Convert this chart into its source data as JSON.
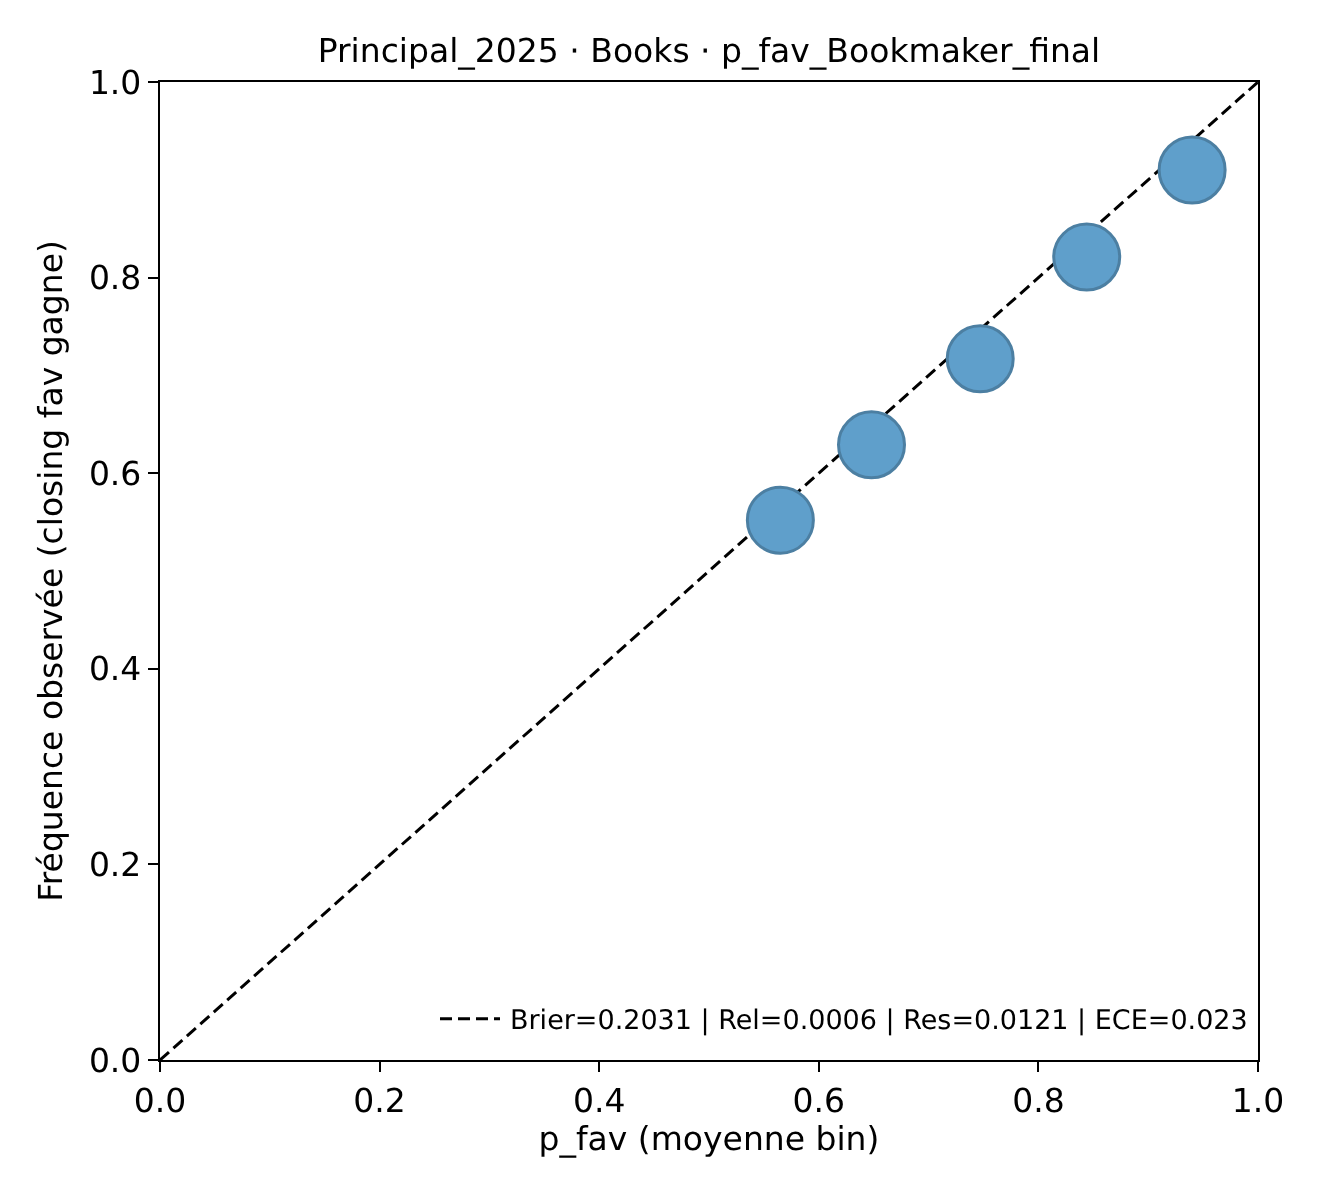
{
  "chart_data": {
    "type": "scatter",
    "title": "Principal_2025 · Books · p_fav_Bookmaker_final",
    "xlabel": "p_fav (moyenne bin)",
    "ylabel": "Fréquence observée (closing fav gagne)",
    "xlim": [
      0,
      1
    ],
    "ylim": [
      0,
      1
    ],
    "xticks": [
      {
        "value": 0,
        "label": "0.0"
      },
      0.2,
      0.4,
      0.6,
      0.8,
      {
        "value": 1,
        "label": "1.0"
      }
    ],
    "yticks": [
      {
        "value": 0,
        "label": "0.0"
      },
      0.2,
      0.4,
      0.6,
      0.8,
      {
        "value": 1,
        "label": "1.0"
      }
    ],
    "legend": "bottom right",
    "series": [
      {
        "type": "line",
        "name": "Brier=0.2031 | Rel=0.0006 | Res=0.0121 | ECE=0.023",
        "color": "#000000",
        "line_style": "dashed",
        "marker": "none",
        "x": [
          0,
          1
        ],
        "values": [
          0,
          1
        ]
      },
      {
        "color": "#5f9fcb",
        "marker": "circle",
        "x": [
          0.565,
          0.648,
          0.747,
          0.844,
          0.94
        ],
        "values": [
          0.552,
          0.629,
          0.717,
          0.821,
          0.91
        ]
      }
    ]
  }
}
